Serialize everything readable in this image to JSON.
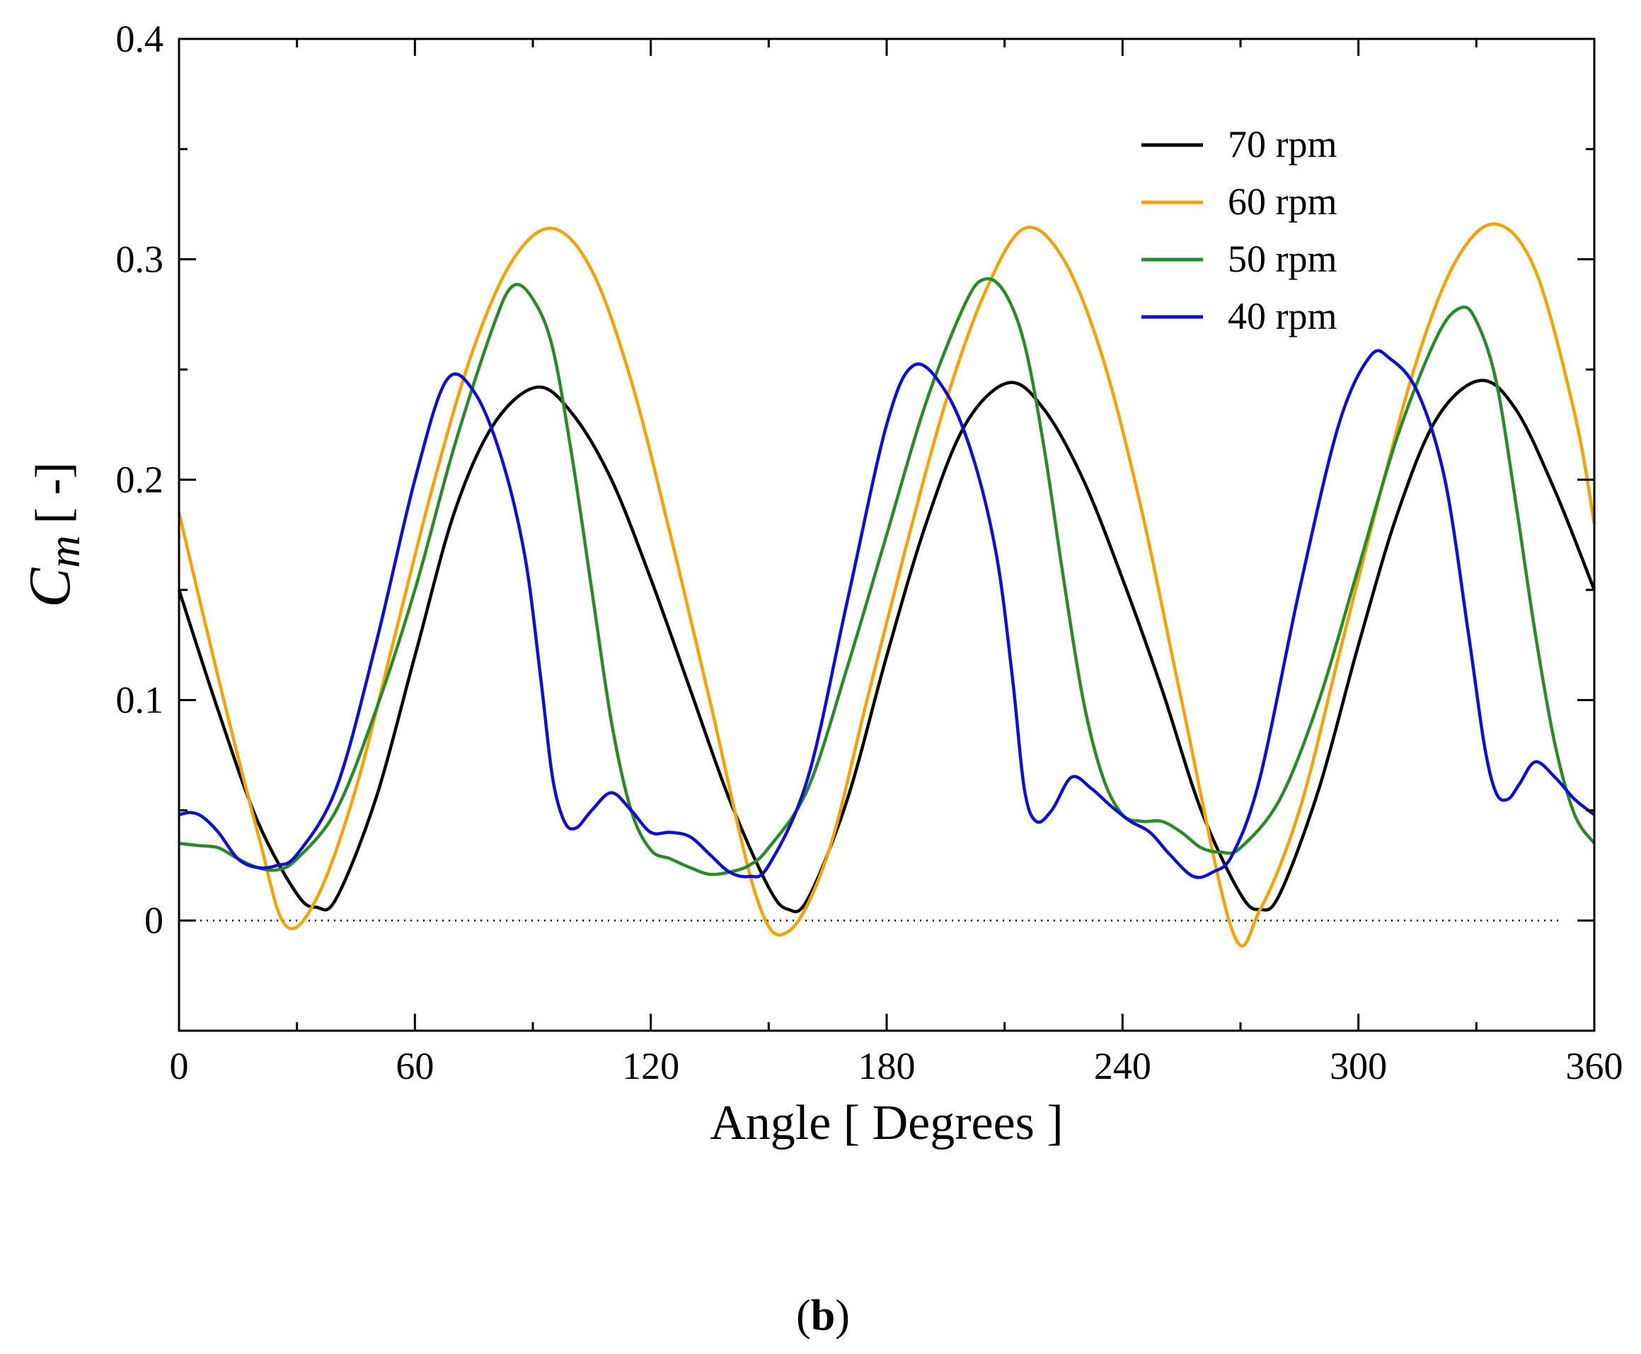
{
  "chart_data": {
    "type": "line",
    "title": "",
    "xlabel": "Angle [ Degrees ]",
    "ylabel_symbol": "C",
    "ylabel_subscript": "m",
    "ylabel_units": "[ -]",
    "xlim": [
      0,
      360
    ],
    "ylim": [
      -0.05,
      0.4
    ],
    "x_ticks": [
      {
        "value": 0,
        "label": "0"
      },
      {
        "value": 60,
        "label": "60"
      },
      {
        "value": 120,
        "label": "120"
      },
      {
        "value": 180,
        "label": "180"
      },
      {
        "value": 240,
        "label": "240"
      },
      {
        "value": 300,
        "label": "300"
      },
      {
        "value": 360,
        "label": "360"
      }
    ],
    "x_minor_step": 30,
    "y_ticks": [
      {
        "value": 0,
        "label": "0"
      },
      {
        "value": 0.1,
        "label": "0.1"
      },
      {
        "value": 0.2,
        "label": "0.2"
      },
      {
        "value": 0.3,
        "label": "0.3"
      },
      {
        "value": 0.4,
        "label": "0.4"
      }
    ],
    "y_minor_step": 0.05,
    "reference_line": {
      "y": 0,
      "style": "dotted"
    },
    "legend_position": "top-right",
    "series": [
      {
        "name": "70 rpm",
        "color": "#000000",
        "x": [
          0,
          10,
          20,
          30,
          35,
          40,
          50,
          60,
          70,
          80,
          91,
          100,
          110,
          120,
          130,
          140,
          150,
          155,
          160,
          170,
          180,
          190,
          200,
          211,
          220,
          230,
          240,
          250,
          260,
          270,
          275,
          280,
          290,
          300,
          310,
          320,
          331,
          340,
          350,
          360
        ],
        "y": [
          0.15,
          0.095,
          0.045,
          0.012,
          0.006,
          0.01,
          0.055,
          0.12,
          0.185,
          0.225,
          0.242,
          0.23,
          0.2,
          0.155,
          0.105,
          0.055,
          0.015,
          0.005,
          0.01,
          0.055,
          0.12,
          0.18,
          0.225,
          0.244,
          0.232,
          0.2,
          0.155,
          0.105,
          0.05,
          0.012,
          0.005,
          0.012,
          0.06,
          0.125,
          0.185,
          0.228,
          0.245,
          0.232,
          0.195,
          0.15
        ]
      },
      {
        "name": "60 rpm",
        "color": "#f0a30a",
        "x": [
          0,
          10,
          20,
          27,
          35,
          45,
          55,
          65,
          75,
          85,
          95,
          105,
          115,
          125,
          135,
          147,
          155,
          165,
          175,
          185,
          195,
          205,
          215,
          225,
          235,
          245,
          255,
          268,
          275,
          285,
          295,
          305,
          315,
          325,
          335,
          345,
          355,
          360
        ],
        "y": [
          0.185,
          0.11,
          0.04,
          -0.002,
          0.01,
          0.06,
          0.13,
          0.2,
          0.26,
          0.3,
          0.314,
          0.295,
          0.245,
          0.175,
          0.1,
          0.01,
          -0.005,
          0.03,
          0.1,
          0.17,
          0.235,
          0.285,
          0.314,
          0.3,
          0.255,
          0.185,
          0.1,
          -0.005,
          0.005,
          0.05,
          0.12,
          0.19,
          0.255,
          0.3,
          0.316,
          0.295,
          0.23,
          0.18
        ]
      },
      {
        "name": "50 rpm",
        "color": "#2a8a2a",
        "x": [
          0,
          5,
          10,
          15,
          20,
          25,
          30,
          40,
          50,
          60,
          70,
          80,
          85,
          90,
          95,
          100,
          105,
          110,
          115,
          120,
          125,
          130,
          135,
          140,
          145,
          150,
          160,
          170,
          180,
          190,
          200,
          205,
          210,
          215,
          220,
          225,
          230,
          235,
          240,
          245,
          250,
          255,
          260,
          265,
          270,
          280,
          290,
          300,
          310,
          320,
          326,
          330,
          335,
          340,
          345,
          350,
          355,
          360
        ],
        "y": [
          0.035,
          0.034,
          0.033,
          0.028,
          0.024,
          0.023,
          0.028,
          0.05,
          0.095,
          0.15,
          0.215,
          0.27,
          0.288,
          0.282,
          0.26,
          0.21,
          0.15,
          0.09,
          0.05,
          0.032,
          0.028,
          0.024,
          0.021,
          0.022,
          0.025,
          0.033,
          0.06,
          0.115,
          0.175,
          0.235,
          0.28,
          0.291,
          0.285,
          0.262,
          0.215,
          0.155,
          0.1,
          0.065,
          0.048,
          0.045,
          0.045,
          0.04,
          0.033,
          0.031,
          0.033,
          0.055,
          0.1,
          0.16,
          0.22,
          0.265,
          0.278,
          0.272,
          0.245,
          0.19,
          0.13,
          0.08,
          0.048,
          0.035
        ]
      },
      {
        "name": "40 rpm",
        "color": "#1010c8",
        "x": [
          0,
          3,
          6,
          10,
          15,
          20,
          25,
          30,
          40,
          50,
          60,
          68,
          75,
          82,
          88,
          92,
          95,
          98,
          101,
          105,
          110,
          115,
          120,
          125,
          130,
          135,
          140,
          145,
          150,
          160,
          170,
          180,
          187,
          195,
          202,
          208,
          212,
          215,
          218,
          222,
          227,
          232,
          237,
          242,
          247,
          252,
          258,
          263,
          268,
          275,
          285,
          295,
          303,
          308,
          315,
          322,
          328,
          332,
          335,
          338,
          341,
          345,
          350,
          355,
          360
        ],
        "y": [
          0.048,
          0.049,
          0.047,
          0.04,
          0.028,
          0.024,
          0.025,
          0.03,
          0.06,
          0.125,
          0.2,
          0.245,
          0.24,
          0.21,
          0.165,
          0.11,
          0.065,
          0.045,
          0.042,
          0.05,
          0.058,
          0.05,
          0.04,
          0.04,
          0.038,
          0.03,
          0.022,
          0.02,
          0.025,
          0.065,
          0.145,
          0.225,
          0.252,
          0.24,
          0.21,
          0.165,
          0.11,
          0.06,
          0.045,
          0.05,
          0.065,
          0.06,
          0.052,
          0.045,
          0.04,
          0.03,
          0.02,
          0.022,
          0.03,
          0.065,
          0.15,
          0.225,
          0.256,
          0.255,
          0.24,
          0.2,
          0.13,
          0.08,
          0.058,
          0.055,
          0.062,
          0.072,
          0.065,
          0.055,
          0.048
        ]
      }
    ]
  },
  "caption": {
    "open": "(",
    "letter": "b",
    "close": ")"
  }
}
